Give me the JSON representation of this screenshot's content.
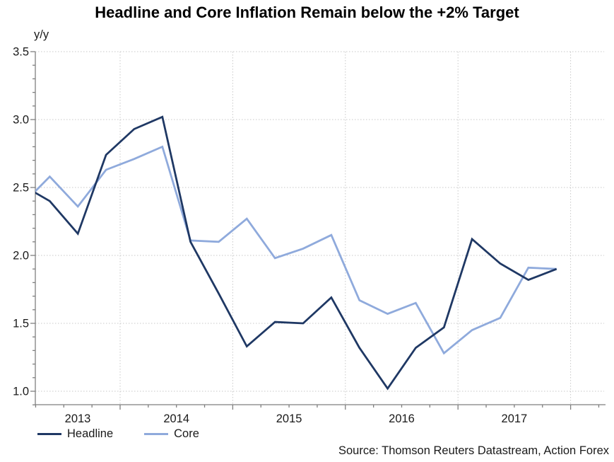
{
  "title": "Headline and Core Inflation Remain below the +2% Target",
  "source": "Source: Thomson Reuters Datastream, Action Forex",
  "colors": {
    "headline_line": "#1f3864",
    "core_line": "#8faadc",
    "gridline": "#c8c8c8",
    "axis": "#7f7f7f",
    "text": "#1a1a1a"
  },
  "chart_data": {
    "type": "line",
    "title": "Headline and Core Inflation Remain below the +2% Target",
    "ylabel": "y/y",
    "xlabel": "",
    "ylim": [
      0.9,
      3.5
    ],
    "yticks": [
      1.0,
      1.5,
      2.0,
      2.5,
      3.0,
      3.5
    ],
    "y_minor_step": 0.1,
    "grid": true,
    "legend_position": "bottom-left",
    "x_year_labels": [
      2013,
      2014,
      2015,
      2016,
      2017
    ],
    "x": [
      2013.125,
      2013.375,
      2013.625,
      2013.875,
      2014.125,
      2014.375,
      2014.625,
      2014.875,
      2015.125,
      2015.375,
      2015.625,
      2015.875,
      2016.125,
      2016.375,
      2016.625,
      2016.875,
      2017.125,
      2017.375,
      2017.625,
      2017.875
    ],
    "series": [
      {
        "name": "Headline",
        "color": "#1f3864",
        "values": [
          2.52,
          2.4,
          2.16,
          2.74,
          2.93,
          3.02,
          2.1,
          1.72,
          1.33,
          1.51,
          1.5,
          1.69,
          1.32,
          1.02,
          1.32,
          1.47,
          2.12,
          1.94,
          1.82,
          1.9
        ]
      },
      {
        "name": "Core",
        "color": "#8faadc",
        "values": [
          2.37,
          2.58,
          2.36,
          2.63,
          2.71,
          2.8,
          2.11,
          2.1,
          2.27,
          1.98,
          2.05,
          2.15,
          1.67,
          1.57,
          1.65,
          1.28,
          1.45,
          1.54,
          1.91,
          1.9
        ]
      }
    ],
    "source": "Source: Thomson Reuters Datastream, Action Forex"
  }
}
